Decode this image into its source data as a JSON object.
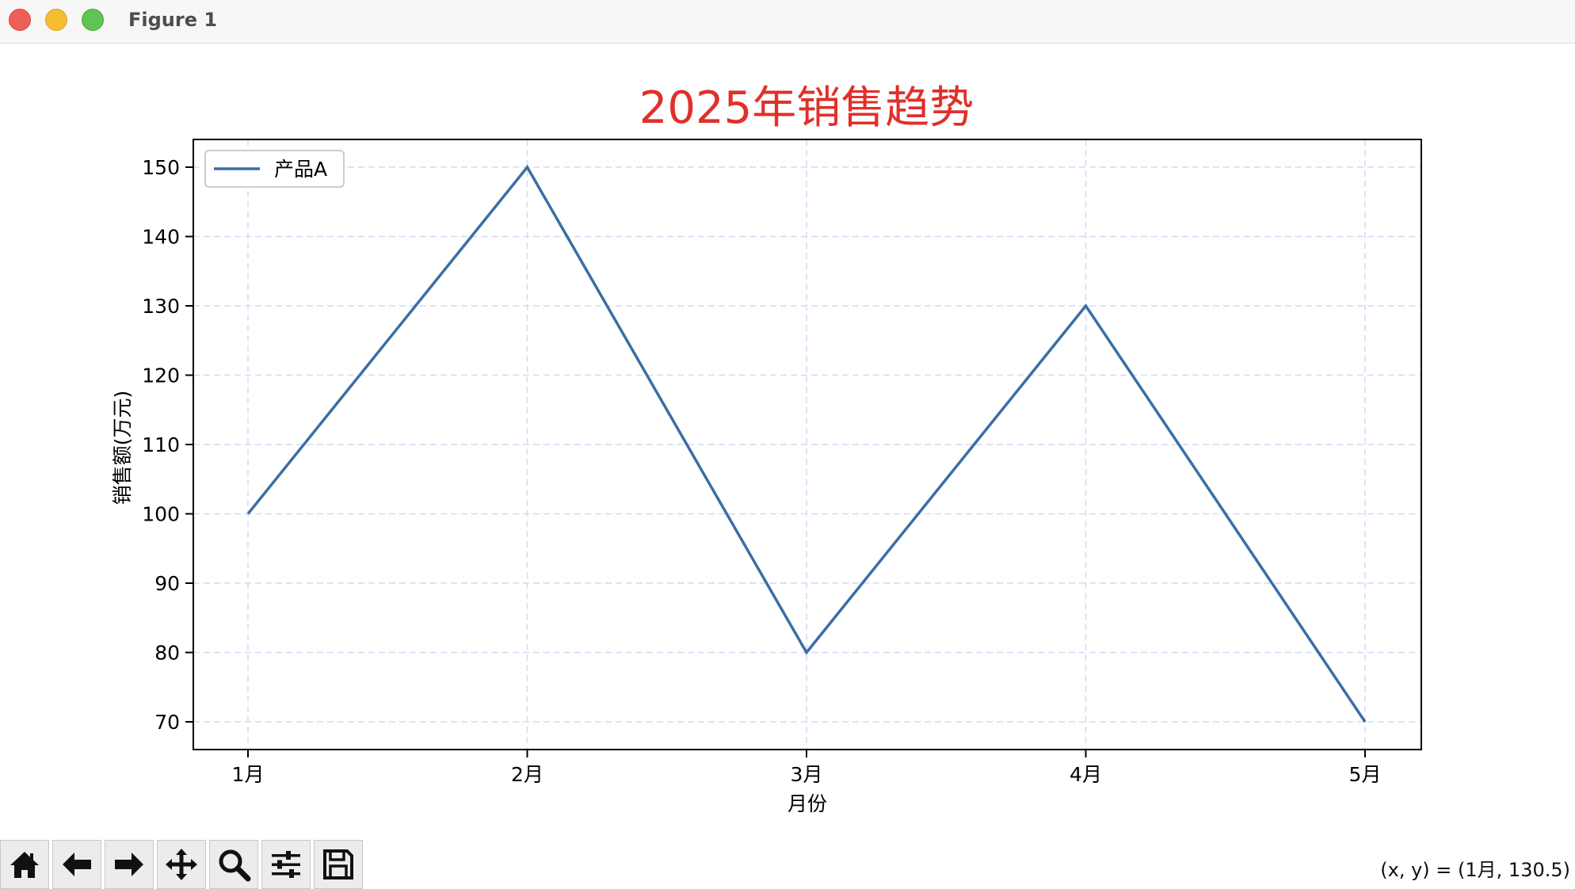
{
  "window": {
    "title": "Figure 1"
  },
  "colors": {
    "line": "#3a6ea5",
    "title": "#e0302a",
    "grid": "#d6d9f5",
    "axis": "#000000"
  },
  "chart_data": {
    "type": "line",
    "title": "2025年销售趋势",
    "xlabel": "月份",
    "ylabel": "销售额(万元)",
    "categories": [
      "1月",
      "2月",
      "3月",
      "4月",
      "5月"
    ],
    "series": [
      {
        "name": "产品A",
        "values": [
          100,
          150,
          80,
          130,
          70
        ]
      }
    ],
    "ylim": [
      66,
      154
    ],
    "yticks": [
      70,
      80,
      90,
      100,
      110,
      120,
      130,
      140,
      150
    ],
    "grid": true,
    "legend": "top-left"
  },
  "toolbar": {
    "buttons": [
      {
        "name": "home-button",
        "icon": "home-icon"
      },
      {
        "name": "back-button",
        "icon": "arrow-left-icon"
      },
      {
        "name": "forward-button",
        "icon": "arrow-right-icon"
      },
      {
        "name": "pan-button",
        "icon": "move-icon"
      },
      {
        "name": "zoom-button",
        "icon": "magnifier-icon"
      },
      {
        "name": "configure-subplots-button",
        "icon": "sliders-icon"
      },
      {
        "name": "save-button",
        "icon": "floppy-disk-icon"
      }
    ]
  },
  "status": {
    "coords": "(x, y) = (1月, 130.5)"
  }
}
